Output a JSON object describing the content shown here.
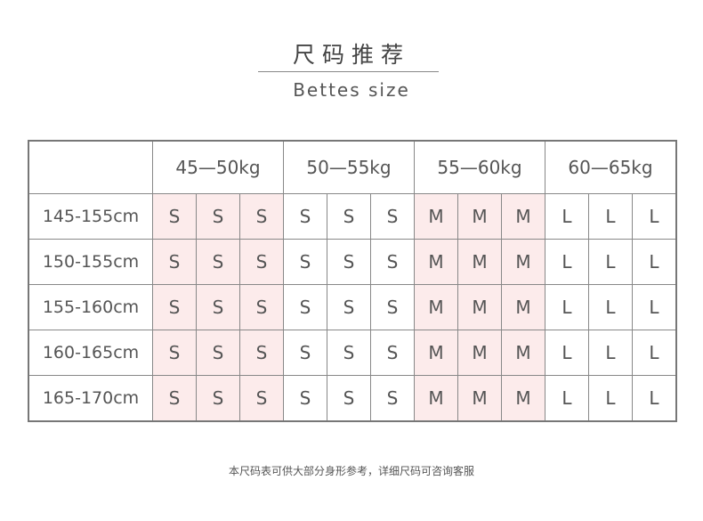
{
  "title": "尺码推荐",
  "subtitle": "Bettes size",
  "highlight_color": "#fcebeb",
  "weights": [
    "45—50kg",
    "50—55kg",
    "55—60kg",
    "60—65kg"
  ],
  "rows": [
    {
      "height": "145-155cm",
      "sizes": [
        "S",
        "S",
        "S",
        "S",
        "S",
        "S",
        "M",
        "M",
        "M",
        "L",
        "L",
        "L"
      ]
    },
    {
      "height": "150-155cm",
      "sizes": [
        "S",
        "S",
        "S",
        "S",
        "S",
        "S",
        "M",
        "M",
        "M",
        "L",
        "L",
        "L"
      ]
    },
    {
      "height": "155-160cm",
      "sizes": [
        "S",
        "S",
        "S",
        "S",
        "S",
        "S",
        "M",
        "M",
        "M",
        "L",
        "L",
        "L"
      ]
    },
    {
      "height": "160-165cm",
      "sizes": [
        "S",
        "S",
        "S",
        "S",
        "S",
        "S",
        "M",
        "M",
        "M",
        "L",
        "L",
        "L"
      ]
    },
    {
      "height": "165-170cm",
      "sizes": [
        "S",
        "S",
        "S",
        "S",
        "S",
        "S",
        "M",
        "M",
        "M",
        "L",
        "L",
        "L"
      ]
    }
  ],
  "note": "本尺码表可供大部分身形参考，详细尺码可咨询客服"
}
